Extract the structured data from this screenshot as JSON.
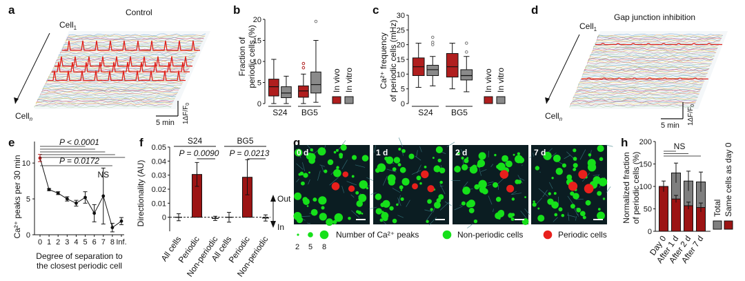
{
  "colors": {
    "invivo": "#b01e1e",
    "invitro": "#8a8a8a",
    "red_trace": "#e0201a",
    "nonperiodic": "#16e01a",
    "periodic": "#e8201c",
    "micro_bg": "#0b1d22",
    "dark_red": "#9c1414",
    "grey": "#7f7f7f"
  },
  "panel_a": {
    "letter": "a",
    "title": "Control",
    "cell_top_prefix": "Cell",
    "cell_top_sub": "1",
    "cell_bottom_prefix": "Cell",
    "cell_bottom_sub": "n",
    "scale_x": "5 min",
    "scale_y": "1ΔF/F",
    "scale_y_sub": "0"
  },
  "panel_d": {
    "letter": "d",
    "title": "Gap junction inhibition",
    "cell_top_prefix": "Cell",
    "cell_top_sub": "1",
    "cell_bottom_prefix": "Cell",
    "cell_bottom_sub": "n",
    "scale_x": "5 min",
    "scale_y": "1ΔF/F",
    "scale_y_sub": "0"
  },
  "chart_data": [
    {
      "panel": "b",
      "type": "box",
      "ylabel_line1": "Fraction of",
      "ylabel_line2": "periodic cells (%)",
      "yticks": [
        0,
        5,
        10,
        15,
        20
      ],
      "ylim": [
        0,
        20
      ],
      "groups": [
        "S24",
        "BG5"
      ],
      "legend": [
        "In vivo",
        "In vitro"
      ],
      "boxes": [
        {
          "group": "S24",
          "series": "In vivo",
          "min": 0,
          "q1": 1.8,
          "median": 4.0,
          "q3": 5.8,
          "max": 10.5,
          "outliers": []
        },
        {
          "group": "S24",
          "series": "In vitro",
          "min": 0,
          "q1": 1.4,
          "median": 2.5,
          "q3": 4.0,
          "max": 6.5,
          "outliers": []
        },
        {
          "group": "BG5",
          "series": "In vivo",
          "min": 0,
          "q1": 1.5,
          "median": 3.0,
          "q3": 4.2,
          "max": 7.0,
          "outliers": [
            8.5,
            9.5
          ]
        },
        {
          "group": "BG5",
          "series": "In vitro",
          "min": 0.3,
          "q1": 2.5,
          "median": 4.5,
          "q3": 7.5,
          "max": 15.0,
          "outliers": [
            19.5
          ]
        }
      ]
    },
    {
      "panel": "c",
      "type": "box",
      "ylabel_line1": "Ca²⁺ frequency",
      "ylabel_line2": "of periodic cells (mHz)",
      "yticks": [
        0,
        5,
        10,
        15,
        20,
        25,
        30
      ],
      "ylim": [
        0,
        30
      ],
      "groups": [
        "S24",
        "BG5"
      ],
      "legend": [
        "In vivo",
        "In vitro"
      ],
      "boxes": [
        {
          "group": "S24",
          "series": "In vivo",
          "min": 5.5,
          "q1": 9.5,
          "median": 12.5,
          "q3": 15.5,
          "max": 20.5,
          "outliers": []
        },
        {
          "group": "S24",
          "series": "In vitro",
          "min": 6.0,
          "q1": 9.5,
          "median": 11.5,
          "q3": 13.0,
          "max": 16.0,
          "outliers": [
            20.0,
            20.8,
            22.5
          ]
        },
        {
          "group": "BG5",
          "series": "In vivo",
          "min": 5.0,
          "q1": 9.0,
          "median": 12.5,
          "q3": 17.0,
          "max": 20.5,
          "outliers": []
        },
        {
          "group": "BG5",
          "series": "In vitro",
          "min": 4.0,
          "q1": 8.0,
          "median": 9.5,
          "q3": 11.5,
          "max": 16.0,
          "outliers": [
            17.5,
            20.5
          ]
        }
      ]
    },
    {
      "panel": "e",
      "type": "line",
      "ylabel": "Ca²⁺ peaks per 30 min",
      "xlabel_line1": "Degree of separation to",
      "xlabel_line2": "the closest periodic cell",
      "x": [
        "0",
        "1",
        "2",
        "3",
        "4",
        "5",
        "6",
        "7",
        "8",
        "Inf."
      ],
      "y": [
        10.7,
        6.3,
        5.8,
        5.0,
        4.4,
        5.2,
        3.0,
        5.4,
        1.0,
        1.9
      ],
      "err": [
        0.5,
        0.15,
        0.2,
        0.3,
        0.4,
        0.8,
        1.2,
        3.9,
        0.6,
        0.5
      ],
      "yticks": [
        0,
        5,
        10
      ],
      "ylim": [
        0,
        13
      ],
      "annotations": [
        "P < 0.0001",
        "P = 0.0172",
        "NS"
      ]
    },
    {
      "panel": "f",
      "type": "bar",
      "ylabel": "Directionality (AU)",
      "yticks": [
        "0",
        "0.01",
        "0.02",
        "0.03",
        "0.04",
        "0.05"
      ],
      "ylim": [
        -0.01,
        0.05
      ],
      "groups": [
        {
          "name": "S24",
          "p": "P = 0.0090",
          "categories": [
            "All cells",
            "Periodic",
            "Non-periodic"
          ],
          "values": [
            0.0,
            0.0305,
            -0.0008
          ],
          "err": [
            0.0025,
            0.0085,
            0.0015
          ]
        },
        {
          "name": "BG5",
          "p": "P = 0.0213",
          "categories": [
            "All cells",
            "Periodic",
            "Non-periodic"
          ],
          "values": [
            0.0,
            0.0285,
            -0.0005
          ],
          "err": [
            0.0035,
            0.0125,
            0.0022
          ]
        }
      ],
      "arrow_up": "Out",
      "arrow_down": "In"
    },
    {
      "panel": "h",
      "type": "stacked-bar",
      "ylabel_line1": "Normalized fraction",
      "ylabel_line2": "of periodic cells (%)",
      "yticks": [
        0,
        50,
        100,
        150,
        200
      ],
      "ylim": [
        0,
        200
      ],
      "categories": [
        "Day 0",
        "After 1 d",
        "After 2 d",
        "After 7 d"
      ],
      "series": [
        {
          "name": "Same cells as day 0",
          "values": [
            100,
            72,
            57,
            53
          ],
          "err": [
            0,
            8,
            8,
            10
          ]
        },
        {
          "name": "Total",
          "values": [
            100,
            130,
            112,
            110
          ],
          "err": [
            12,
            22,
            22,
            22
          ]
        }
      ],
      "annotation": "NS",
      "legend": [
        "Total",
        "Same cells as day 0"
      ]
    }
  ],
  "panel_g": {
    "letter": "g",
    "tiles": [
      "0 d",
      "1 d",
      "2 d",
      "7 d"
    ],
    "legend_title": "Number of Ca²⁺ peaks",
    "sizes": [
      "2",
      "5",
      "8"
    ],
    "nonperiodic_label": "Non-periodic cells",
    "periodic_label": "Periodic cells"
  },
  "letters": {
    "b": "b",
    "c": "c",
    "e": "e",
    "f": "f",
    "h": "h"
  }
}
